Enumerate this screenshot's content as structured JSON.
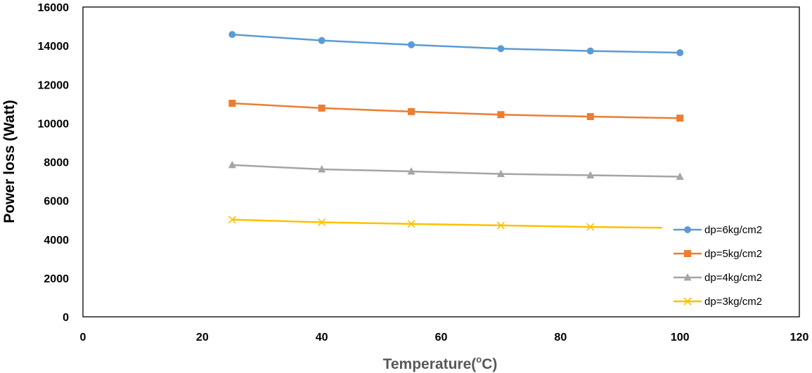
{
  "chart_data": {
    "type": "line",
    "title": "",
    "xlabel": "Temperature(°C)",
    "xlabel_main": "Temperature(",
    "xlabel_sup": "o",
    "xlabel_tail": "C)",
    "ylabel": "Power loss (Watt)",
    "xlim": [
      0,
      120
    ],
    "ylim": [
      0,
      16000
    ],
    "xticks": [
      0,
      20,
      40,
      60,
      80,
      100,
      120
    ],
    "yticks": [
      0,
      2000,
      4000,
      6000,
      8000,
      10000,
      12000,
      14000,
      16000
    ],
    "grid": false,
    "legend_position": "right",
    "series": [
      {
        "name": "dp=6kg/cm2",
        "color": "#5b9bd5",
        "marker": "circle",
        "x": [
          25,
          40,
          55,
          70,
          85,
          100
        ],
        "y": [
          14580,
          14270,
          14050,
          13850,
          13730,
          13640
        ]
      },
      {
        "name": "dp=5kg/cm2",
        "color": "#ed7d31",
        "marker": "square",
        "x": [
          25,
          40,
          55,
          70,
          85,
          100
        ],
        "y": [
          11030,
          10780,
          10600,
          10440,
          10340,
          10260
        ]
      },
      {
        "name": "dp=4kg/cm2",
        "color": "#a5a5a5",
        "marker": "triangle",
        "x": [
          25,
          40,
          55,
          70,
          85,
          100
        ],
        "y": [
          7840,
          7620,
          7510,
          7380,
          7310,
          7240
        ]
      },
      {
        "name": "dp=3kg/cm2",
        "color": "#ffc000",
        "marker": "x",
        "x": [
          25,
          40,
          55,
          70,
          85,
          97
        ],
        "y": [
          5020,
          4880,
          4800,
          4720,
          4640,
          4600
        ]
      }
    ]
  }
}
